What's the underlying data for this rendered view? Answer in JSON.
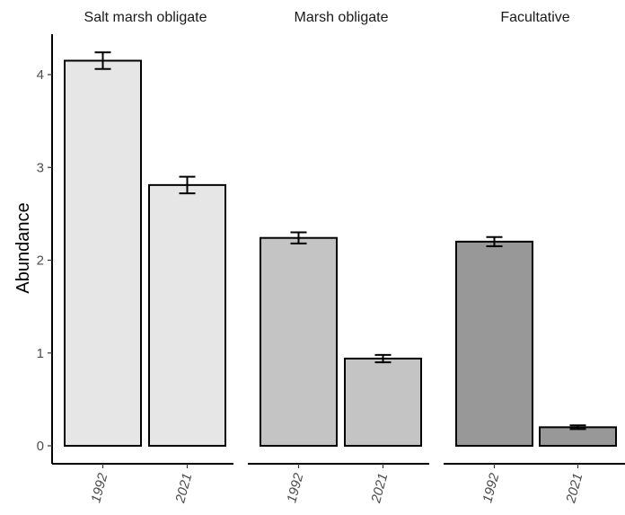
{
  "chart_data": {
    "type": "bar",
    "ylabel": "Abundance",
    "xlabel": "",
    "ylim": [
      0,
      4.4
    ],
    "yticks": [
      0,
      1,
      2,
      3,
      4
    ],
    "grid": false,
    "legend": "none",
    "panels": [
      {
        "title": "Salt marsh obligate",
        "color": "#e6e6e6",
        "categories": [
          "1992",
          "2021"
        ],
        "values": [
          4.15,
          2.81
        ],
        "errors": [
          0.09,
          0.09
        ]
      },
      {
        "title": "Marsh obligate",
        "color": "#c4c4c4",
        "categories": [
          "1992",
          "2021"
        ],
        "values": [
          2.24,
          0.94
        ],
        "errors": [
          0.06,
          0.04
        ]
      },
      {
        "title": "Facultative",
        "color": "#989898",
        "categories": [
          "1992",
          "2021"
        ],
        "values": [
          2.2,
          0.2
        ],
        "errors": [
          0.05,
          0.02
        ]
      }
    ]
  }
}
